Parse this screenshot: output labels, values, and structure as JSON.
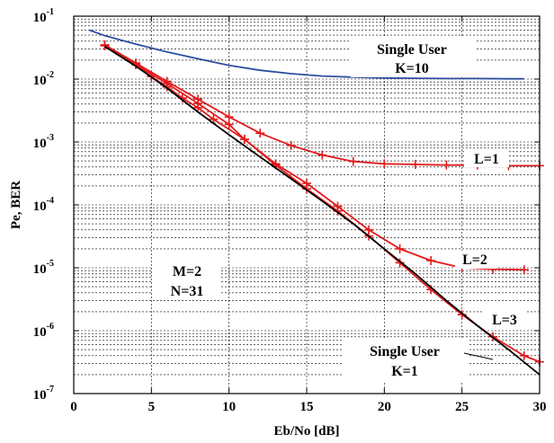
{
  "chart_data": {
    "type": "line",
    "xlabel": "Eb/No [dB]",
    "ylabel": "Pe, BER",
    "xlim": [
      0,
      30
    ],
    "ylim": [
      1e-07,
      0.1
    ],
    "yscale": "log",
    "grid": true,
    "x_ticks": [
      "0",
      "5",
      "10",
      "15",
      "20",
      "25",
      "30"
    ],
    "y_ticks": [
      {
        "base": "10",
        "exp": "-1",
        "value": 0.1
      },
      {
        "base": "10",
        "exp": "-2",
        "value": 0.01
      },
      {
        "base": "10",
        "exp": "-3",
        "value": 0.001
      },
      {
        "base": "10",
        "exp": "-4",
        "value": 0.0001
      },
      {
        "base": "10",
        "exp": "-5",
        "value": 1e-05
      },
      {
        "base": "10",
        "exp": "-6",
        "value": 1e-06
      },
      {
        "base": "10",
        "exp": "-7",
        "value": 1e-07
      }
    ],
    "series": [
      {
        "name": "Single User K=10",
        "color": "#2d4ea0",
        "marker": "none",
        "x": [
          1,
          2,
          4,
          6,
          8,
          10,
          12,
          14,
          16,
          18,
          20,
          22,
          24,
          26,
          28,
          29
        ],
        "y": [
          0.06,
          0.049,
          0.036,
          0.027,
          0.021,
          0.0165,
          0.0138,
          0.0122,
          0.0112,
          0.0107,
          0.0104,
          0.0103,
          0.0102,
          0.0102,
          0.0101,
          0.0101
        ]
      },
      {
        "name": "L=1",
        "color": "#e31a1c",
        "marker": "plus",
        "x": [
          2,
          4,
          6,
          8,
          10,
          12,
          14,
          16,
          18,
          20,
          22,
          24,
          26,
          28,
          30
        ],
        "y": [
          0.035,
          0.018,
          0.0092,
          0.0048,
          0.0025,
          0.00138,
          0.00088,
          0.00062,
          0.00049,
          0.00045,
          0.00044,
          0.00043,
          0.00043,
          0.00042,
          0.00042
        ]
      },
      {
        "name": "L=2",
        "color": "#e31a1c",
        "marker": "plus",
        "x": [
          2,
          4,
          6,
          8,
          10,
          11,
          13,
          15,
          17,
          19,
          21,
          23,
          25,
          27,
          29
        ],
        "y": [
          0.034,
          0.017,
          0.0085,
          0.0041,
          0.0019,
          0.0011,
          0.00045,
          0.00022,
          9.5e-05,
          4e-05,
          2e-05,
          1.3e-05,
          1e-05,
          9.5e-06,
          9.3e-06
        ]
      },
      {
        "name": "L=3",
        "color": "#e31a1c",
        "marker": "plus",
        "x": [
          2,
          4,
          5,
          6,
          7,
          8,
          9,
          11,
          13,
          15,
          17,
          19,
          21,
          23,
          25,
          27,
          29,
          30
        ],
        "y": [
          0.034,
          0.017,
          0.011,
          0.0075,
          0.005,
          0.0035,
          0.0023,
          0.0011,
          0.00043,
          0.00018,
          8e-05,
          3.2e-05,
          1.2e-05,
          4.5e-06,
          1.8e-06,
          8e-07,
          4e-07,
          3.2e-07
        ]
      },
      {
        "name": "Single User K=1",
        "color": "#000000",
        "marker": "none",
        "x": [
          2,
          4,
          6,
          8,
          10,
          12,
          14,
          16,
          18,
          20,
          22,
          24,
          26,
          28,
          30
        ],
        "y": [
          0.033,
          0.016,
          0.0072,
          0.003,
          0.0013,
          0.00058,
          0.00026,
          0.000115,
          5e-05,
          2e-05,
          8e-06,
          3e-06,
          1.2e-06,
          5e-07,
          2e-07
        ]
      }
    ],
    "annotations": {
      "single_user_k10": {
        "line1": "Single User",
        "line2": "K=10"
      },
      "l1": "L=1",
      "l2": "L=2",
      "l3": "L=3",
      "params": {
        "line1": "M=2",
        "line2": "N=31"
      },
      "single_user_k1": {
        "line1": "Single User",
        "line2": "K=1"
      }
    }
  }
}
